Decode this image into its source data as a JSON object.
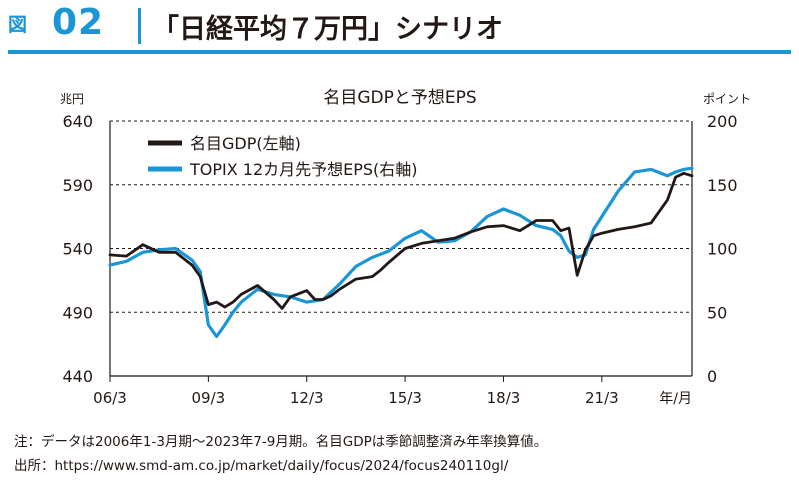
{
  "header": {
    "figure_label": "図",
    "figure_number": "02",
    "title": "「日経平均７万円」シナリオ"
  },
  "notes": {
    "note": "注：データは2006年1-3月期～2023年7-9月期。名目GDPは季節調整済み年率換算値。",
    "source": "出所：https://www.smd-am.co.jp/market/daily/focus/2024/focus240110gl/"
  },
  "colors": {
    "gdp": "#231815",
    "eps": "#1a96d6",
    "accent": "#1a96d6"
  },
  "chart_data": {
    "type": "line",
    "title": "名目GDPと予想EPS",
    "y_left_unit": "兆円",
    "y_right_unit": "ポイント",
    "x_unit": "年/月",
    "y_left_lim": [
      440,
      640
    ],
    "y_right_lim": [
      0,
      200
    ],
    "y_left_ticks": [
      "640",
      "590",
      "540",
      "490",
      "440"
    ],
    "y_right_ticks": [
      "200",
      "150",
      "100",
      "50",
      "0"
    ],
    "x_lim": [
      2006.0,
      2023.75
    ],
    "x_ticks": [
      {
        "x": 2006.0,
        "label": "06/3"
      },
      {
        "x": 2009.0,
        "label": "09/3"
      },
      {
        "x": 2012.0,
        "label": "12/3"
      },
      {
        "x": 2015.0,
        "label": "15/3"
      },
      {
        "x": 2018.0,
        "label": "18/3"
      },
      {
        "x": 2021.0,
        "label": "21/3"
      }
    ],
    "grid": "horizontal-dashed",
    "legend_position": "top-left",
    "series": [
      {
        "name": "名目GDP(左軸)",
        "axis": "left",
        "color": "#231815",
        "x": [
          2006.0,
          2006.5,
          2007.0,
          2007.5,
          2008.0,
          2008.5,
          2008.75,
          2009.0,
          2009.25,
          2009.5,
          2009.75,
          2010.0,
          2010.5,
          2011.0,
          2011.25,
          2011.5,
          2012.0,
          2012.25,
          2012.5,
          2012.75,
          2013.0,
          2013.5,
          2014.0,
          2014.25,
          2014.5,
          2015.0,
          2015.5,
          2016.0,
          2016.5,
          2017.0,
          2017.5,
          2018.0,
          2018.5,
          2019.0,
          2019.5,
          2019.75,
          2020.0,
          2020.25,
          2020.5,
          2020.75,
          2021.0,
          2021.5,
          2022.0,
          2022.5,
          2023.0,
          2023.25,
          2023.5,
          2023.75
        ],
        "values": [
          535,
          534,
          543,
          537,
          537,
          527,
          518,
          496,
          498,
          494,
          498,
          504,
          511,
          500,
          493,
          502,
          507,
          500,
          500,
          503,
          508,
          516,
          518,
          523,
          529,
          540,
          544,
          546,
          548,
          553,
          557,
          558,
          554,
          562,
          562,
          554,
          556,
          519,
          539,
          550,
          552,
          555,
          557,
          560,
          578,
          596,
          599,
          597
        ]
      },
      {
        "name": "TOPIX 12カ月先予想EPS(右軸)",
        "axis": "right",
        "color": "#1a96d6",
        "x": [
          2006.0,
          2006.5,
          2007.0,
          2007.5,
          2008.0,
          2008.5,
          2008.75,
          2009.0,
          2009.25,
          2009.5,
          2009.75,
          2010.0,
          2010.5,
          2011.0,
          2011.5,
          2012.0,
          2012.5,
          2013.0,
          2013.5,
          2014.0,
          2014.5,
          2015.0,
          2015.5,
          2016.0,
          2016.5,
          2017.0,
          2017.5,
          2018.0,
          2018.5,
          2019.0,
          2019.5,
          2019.75,
          2020.0,
          2020.25,
          2020.5,
          2020.75,
          2021.0,
          2021.5,
          2022.0,
          2022.5,
          2023.0,
          2023.25,
          2023.5,
          2023.75
        ],
        "values": [
          87,
          90,
          97,
          99,
          100,
          91,
          82,
          40,
          31,
          40,
          50,
          58,
          68,
          64,
          62,
          58,
          60,
          72,
          86,
          93,
          98,
          108,
          114,
          105,
          106,
          113,
          125,
          131,
          126,
          118,
          115,
          110,
          98,
          93,
          95,
          115,
          125,
          145,
          160,
          162,
          157,
          160,
          162,
          163
        ]
      }
    ]
  }
}
